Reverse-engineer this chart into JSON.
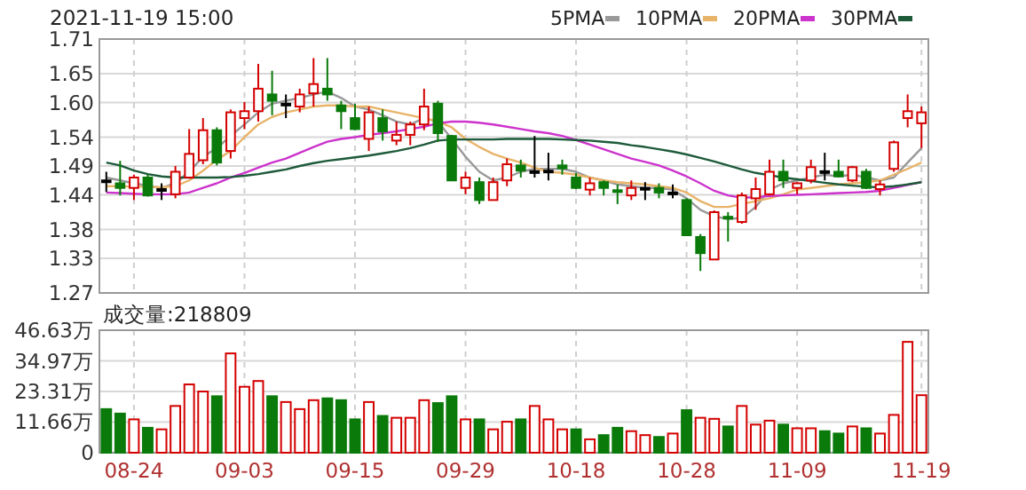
{
  "chart_data": [
    {
      "type": "candlestick",
      "title": "2021-11-19 15:00",
      "categories": [
        null,
        null,
        null,
        null,
        null,
        null,
        null,
        null,
        null,
        null,
        null,
        null,
        null,
        null,
        null,
        null,
        null,
        null,
        null,
        null,
        null,
        null,
        null,
        null,
        null,
        null,
        null,
        null,
        null,
        null,
        null,
        null,
        null,
        null,
        null,
        null,
        null,
        null,
        null,
        null,
        null,
        null,
        null,
        null,
        null,
        null,
        null,
        null,
        null,
        null,
        null,
        null,
        null,
        null,
        null,
        null,
        null,
        null,
        null,
        null
      ],
      "ohlc": [
        [
          1.465,
          1.48,
          1.445,
          1.465
        ],
        [
          1.46,
          1.499,
          1.439,
          1.452
        ],
        [
          1.452,
          1.475,
          1.431,
          1.47
        ],
        [
          1.47,
          1.475,
          1.437,
          1.439
        ],
        [
          1.45,
          1.46,
          1.431,
          1.45
        ],
        [
          1.441,
          1.49,
          1.434,
          1.48
        ],
        [
          1.47,
          1.554,
          1.47,
          1.511
        ],
        [
          1.5,
          1.573,
          1.493,
          1.552
        ],
        [
          1.552,
          1.557,
          1.491,
          1.496
        ],
        [
          1.516,
          1.588,
          1.503,
          1.583
        ],
        [
          1.573,
          1.601,
          1.554,
          1.585
        ],
        [
          1.585,
          1.667,
          1.567,
          1.624
        ],
        [
          1.614,
          1.655,
          1.578,
          1.603
        ],
        [
          1.598,
          1.614,
          1.573,
          1.598
        ],
        [
          1.593,
          1.624,
          1.583,
          1.614
        ],
        [
          1.616,
          1.677,
          1.593,
          1.632
        ],
        [
          1.624,
          1.677,
          1.603,
          1.614
        ],
        [
          1.595,
          1.603,
          1.554,
          1.585
        ],
        [
          1.573,
          1.598,
          1.552,
          1.554
        ],
        [
          1.537,
          1.593,
          1.516,
          1.583
        ],
        [
          1.573,
          1.588,
          1.534,
          1.55
        ],
        [
          1.534,
          1.567,
          1.526,
          1.544
        ],
        [
          1.544,
          1.567,
          1.526,
          1.562
        ],
        [
          1.562,
          1.624,
          1.552,
          1.593
        ],
        [
          1.598,
          1.603,
          1.532,
          1.547
        ],
        [
          1.542,
          1.544,
          1.465,
          1.465
        ],
        [
          1.452,
          1.48,
          1.441,
          1.47
        ],
        [
          1.462,
          1.47,
          1.424,
          1.431
        ],
        [
          1.431,
          1.47,
          1.431,
          1.462
        ],
        [
          1.465,
          1.503,
          1.455,
          1.493
        ],
        [
          1.491,
          1.501,
          1.47,
          1.482
        ],
        [
          1.481,
          1.542,
          1.47,
          1.481
        ],
        [
          1.482,
          1.513,
          1.465,
          1.482
        ],
        [
          1.491,
          1.501,
          1.475,
          1.486
        ],
        [
          1.47,
          1.478,
          1.45,
          1.452
        ],
        [
          1.449,
          1.47,
          1.439,
          1.46
        ],
        [
          1.462,
          1.465,
          1.439,
          1.452
        ],
        [
          1.448,
          1.458,
          1.424,
          1.447
        ],
        [
          1.439,
          1.465,
          1.431,
          1.452
        ],
        [
          1.452,
          1.462,
          1.431,
          1.452
        ],
        [
          1.452,
          1.46,
          1.434,
          1.444
        ],
        [
          1.444,
          1.458,
          1.434,
          1.444
        ],
        [
          1.431,
          1.434,
          1.37,
          1.37
        ],
        [
          1.367,
          1.372,
          1.308,
          1.339
        ],
        [
          1.328,
          1.413,
          1.328,
          1.41
        ],
        [
          1.402,
          1.41,
          1.359,
          1.4
        ],
        [
          1.393,
          1.444,
          1.39,
          1.439
        ],
        [
          1.434,
          1.47,
          1.414,
          1.45
        ],
        [
          1.441,
          1.501,
          1.439,
          1.48
        ],
        [
          1.48,
          1.501,
          1.452,
          1.465
        ],
        [
          1.452,
          1.462,
          1.441,
          1.46
        ],
        [
          1.465,
          1.501,
          1.46,
          1.488
        ],
        [
          1.481,
          1.513,
          1.465,
          1.481
        ],
        [
          1.48,
          1.501,
          1.47,
          1.472
        ],
        [
          1.465,
          1.49,
          1.462,
          1.488
        ],
        [
          1.48,
          1.485,
          1.45,
          1.452
        ],
        [
          1.45,
          1.465,
          1.439,
          1.458
        ],
        [
          1.485,
          1.534,
          1.48,
          1.531
        ],
        [
          1.573,
          1.614,
          1.557,
          1.585
        ],
        [
          1.564,
          1.593,
          1.521,
          1.583
        ]
      ],
      "colors": [
        "#000000",
        "#0a7a0a",
        "#d40000",
        "#0a7a0a",
        "#000000",
        "#d40000",
        "#d40000",
        "#d40000",
        "#0a7a0a",
        "#d40000",
        "#d40000",
        "#d40000",
        "#0a7a0a",
        "#000000",
        "#d40000",
        "#d40000",
        "#0a7a0a",
        "#0a7a0a",
        "#0a7a0a",
        "#d40000",
        "#0a7a0a",
        "#d40000",
        "#d40000",
        "#d40000",
        "#0a7a0a",
        "#0a7a0a",
        "#d40000",
        "#0a7a0a",
        "#d40000",
        "#d40000",
        "#0a7a0a",
        "#000000",
        "#000000",
        "#0a7a0a",
        "#0a7a0a",
        "#d40000",
        "#0a7a0a",
        "#0a7a0a",
        "#d40000",
        "#000000",
        "#0a7a0a",
        "#000000",
        "#0a7a0a",
        "#0a7a0a",
        "#d40000",
        "#0a7a0a",
        "#d40000",
        "#d40000",
        "#d40000",
        "#0a7a0a",
        "#d40000",
        "#d40000",
        "#000000",
        "#0a7a0a",
        "#d40000",
        "#0a7a0a",
        "#d40000",
        "#d40000",
        "#d40000",
        "#d40000"
      ],
      "series": [
        {
          "type": "line",
          "name": "5PMA",
          "color": "#999999",
          "values": [
            1.47,
            1.465,
            1.46,
            1.456,
            1.452,
            1.46,
            1.48,
            1.506,
            1.521,
            1.542,
            1.562,
            1.583,
            1.598,
            1.603,
            1.608,
            1.614,
            1.619,
            1.608,
            1.593,
            1.588,
            1.578,
            1.567,
            1.562,
            1.573,
            1.567,
            1.537,
            1.506,
            1.48,
            1.465,
            1.47,
            1.48,
            1.485,
            1.485,
            1.485,
            1.48,
            1.47,
            1.465,
            1.458,
            1.455,
            1.452,
            1.452,
            1.449,
            1.434,
            1.414,
            1.403,
            1.398,
            1.4,
            1.419,
            1.449,
            1.46,
            1.465,
            1.47,
            1.475,
            1.472,
            1.475,
            1.47,
            1.465,
            1.47,
            1.496,
            1.521
          ]
        },
        {
          "type": "line",
          "name": "10PMA",
          "color": "#e8b46a",
          "values": [
            1.455,
            1.455,
            1.454,
            1.454,
            1.453,
            1.455,
            1.465,
            1.482,
            1.501,
            1.516,
            1.54,
            1.562,
            1.575,
            1.583,
            1.588,
            1.593,
            1.595,
            1.595,
            1.593,
            1.593,
            1.588,
            1.583,
            1.578,
            1.573,
            1.567,
            1.557,
            1.537,
            1.523,
            1.511,
            1.503,
            1.496,
            1.487,
            1.48,
            1.478,
            1.475,
            1.47,
            1.465,
            1.462,
            1.46,
            1.458,
            1.455,
            1.452,
            1.444,
            1.429,
            1.419,
            1.419,
            1.424,
            1.429,
            1.434,
            1.441,
            1.449,
            1.452,
            1.455,
            1.458,
            1.46,
            1.462,
            1.465,
            1.475,
            1.485,
            1.496
          ]
        },
        {
          "type": "line",
          "name": "20PMA",
          "color": "#cc33cc",
          "values": [
            1.444,
            1.443,
            1.442,
            1.441,
            1.441,
            1.441,
            1.444,
            1.452,
            1.46,
            1.47,
            1.478,
            1.487,
            1.496,
            1.503,
            1.513,
            1.523,
            1.532,
            1.537,
            1.54,
            1.544,
            1.547,
            1.55,
            1.554,
            1.558,
            1.564,
            1.567,
            1.567,
            1.565,
            1.562,
            1.558,
            1.554,
            1.55,
            1.547,
            1.542,
            1.535,
            1.527,
            1.519,
            1.511,
            1.503,
            1.497,
            1.491,
            1.482,
            1.472,
            1.46,
            1.447,
            1.439,
            1.435,
            1.436,
            1.438,
            1.439,
            1.44,
            1.441,
            1.442,
            1.443,
            1.444,
            1.445,
            1.447,
            1.452,
            1.457,
            1.462
          ]
        },
        {
          "type": "line",
          "name": "30PMA",
          "color": "#1d5a3a",
          "values": [
            1.496,
            1.491,
            1.482,
            1.476,
            1.472,
            1.47,
            1.47,
            1.47,
            1.47,
            1.471,
            1.473,
            1.476,
            1.48,
            1.484,
            1.49,
            1.495,
            1.499,
            1.502,
            1.505,
            1.508,
            1.512,
            1.516,
            1.521,
            1.527,
            1.534,
            1.536,
            1.536,
            1.536,
            1.536,
            1.537,
            1.537,
            1.537,
            1.537,
            1.536,
            1.535,
            1.534,
            1.532,
            1.53,
            1.526,
            1.523,
            1.519,
            1.515,
            1.51,
            1.504,
            1.498,
            1.491,
            1.484,
            1.478,
            1.474,
            1.47,
            1.467,
            1.464,
            1.461,
            1.458,
            1.456,
            1.454,
            1.453,
            1.455,
            1.458,
            1.462
          ]
        }
      ],
      "ylim": [
        1.27,
        1.71
      ],
      "yticks": [
        1.71,
        1.65,
        {
          "value": 1.6,
          "label": "1.60"
        },
        1.54,
        1.49,
        1.44,
        1.38,
        1.33,
        1.27
      ],
      "grid": true,
      "legend": "top right",
      "tick_labels": "y"
    },
    {
      "type": "bar",
      "title": "成交量:218809",
      "categories": [
        null,
        null,
        "08-24",
        null,
        null,
        null,
        null,
        null,
        null,
        null,
        "09-03",
        null,
        null,
        null,
        null,
        null,
        null,
        null,
        "09-15",
        null,
        null,
        null,
        null,
        null,
        null,
        null,
        "09-29",
        null,
        null,
        null,
        null,
        null,
        null,
        null,
        "10-18",
        null,
        null,
        null,
        null,
        null,
        null,
        null,
        "10-28",
        null,
        null,
        null,
        null,
        null,
        null,
        null,
        "11-09",
        null,
        null,
        null,
        null,
        null,
        null,
        null,
        null,
        "11-19"
      ],
      "values": [
        16.6,
        14.9,
        12.7,
        9.5,
        8.9,
        17.8,
        26.0,
        23.3,
        21.5,
        37.8,
        25.1,
        27.3,
        21.5,
        19.3,
        16.6,
        20.0,
        20.7,
        20.0,
        12.7,
        19.3,
        14.0,
        13.3,
        13.3,
        20.0,
        18.9,
        21.5,
        12.7,
        12.7,
        8.9,
        11.8,
        12.7,
        17.8,
        12.7,
        8.9,
        8.9,
        5.1,
        6.7,
        9.5,
        8.2,
        6.7,
        6.0,
        7.3,
        16.2,
        13.3,
        12.9,
        10.0,
        17.8,
        10.7,
        12.2,
        10.7,
        9.3,
        9.3,
        8.2,
        7.3,
        10.0,
        9.3,
        7.3,
        14.4,
        42.2,
        21.9
      ],
      "colors": [
        "#0a7a0a",
        "#0a7a0a",
        "#d40000",
        "#0a7a0a",
        "#d40000",
        "#d40000",
        "#d40000",
        "#d40000",
        "#0a7a0a",
        "#d40000",
        "#d40000",
        "#d40000",
        "#0a7a0a",
        "#d40000",
        "#d40000",
        "#d40000",
        "#0a7a0a",
        "#0a7a0a",
        "#0a7a0a",
        "#d40000",
        "#0a7a0a",
        "#d40000",
        "#d40000",
        "#d40000",
        "#0a7a0a",
        "#0a7a0a",
        "#d40000",
        "#0a7a0a",
        "#d40000",
        "#d40000",
        "#0a7a0a",
        "#d40000",
        "#d40000",
        "#d40000",
        "#0a7a0a",
        "#d40000",
        "#0a7a0a",
        "#0a7a0a",
        "#d40000",
        "#d40000",
        "#0a7a0a",
        "#d40000",
        "#0a7a0a",
        "#d40000",
        "#d40000",
        "#0a7a0a",
        "#d40000",
        "#d40000",
        "#d40000",
        "#0a7a0a",
        "#d40000",
        "#d40000",
        "#0a7a0a",
        "#0a7a0a",
        "#d40000",
        "#0a7a0a",
        "#d40000",
        "#d40000",
        "#d40000",
        "#d40000"
      ],
      "ylim": [
        0,
        46.63
      ],
      "yticks": [
        {
          "value": 46.63,
          "label": "46.63万"
        },
        {
          "value": 34.97,
          "label": "34.97万"
        },
        {
          "value": 23.31,
          "label": "23.31万"
        },
        {
          "value": 11.66,
          "label": "11.66万"
        },
        0
      ],
      "grid": true
    }
  ]
}
